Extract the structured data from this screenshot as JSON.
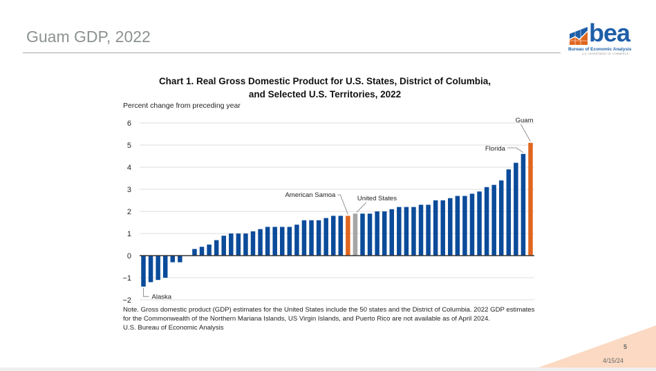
{
  "slide": {
    "title": "Guam GDP, 2022",
    "page_number": "5",
    "date": "4/15/24"
  },
  "logo": {
    "icon": "bea-logo-icon",
    "wordmark": "bea",
    "subtitle": "Bureau of Economic Analysis",
    "department": "U.S. DEPARTMENT OF COMMERCE"
  },
  "colors": {
    "states": "#0b4b9a",
    "highlight": "#e0661f",
    "united_states": "#a6a6a6",
    "gridline": "#e3e3e3",
    "axis": "#333333"
  },
  "chart_data": {
    "type": "bar",
    "title_line1": "Chart 1. Real Gross Domestic Product for U.S. States, District of Columbia,",
    "title_line2": "and Selected U.S. Territories, 2022",
    "xlabel": "",
    "ylabel": "Percent change from preceding year",
    "ylim": [
      -2,
      6
    ],
    "yticks": [
      6,
      5,
      4,
      3,
      2,
      1,
      0,
      -1,
      -2
    ],
    "ytick_labels": [
      "6",
      "5",
      "4",
      "3",
      "2",
      "1",
      "0",
      "−1",
      "−2"
    ],
    "grid": true,
    "values": [
      -1.4,
      -1.2,
      -1.1,
      -1.0,
      -0.3,
      -0.3,
      0.0,
      0.3,
      0.4,
      0.5,
      0.7,
      0.9,
      1.0,
      1.0,
      1.0,
      1.1,
      1.2,
      1.3,
      1.3,
      1.3,
      1.3,
      1.4,
      1.6,
      1.6,
      1.6,
      1.7,
      1.8,
      1.8,
      1.8,
      1.9,
      1.9,
      1.9,
      2.0,
      2.0,
      2.1,
      2.2,
      2.2,
      2.2,
      2.3,
      2.3,
      2.5,
      2.5,
      2.6,
      2.7,
      2.7,
      2.8,
      2.9,
      3.1,
      3.2,
      3.4,
      3.9,
      4.2,
      4.6,
      5.1
    ],
    "bar_kinds": [
      "state",
      "state",
      "state",
      "state",
      "state",
      "state",
      "state",
      "state",
      "state",
      "state",
      "state",
      "state",
      "state",
      "state",
      "state",
      "state",
      "state",
      "state",
      "state",
      "state",
      "state",
      "state",
      "state",
      "state",
      "state",
      "state",
      "state",
      "state",
      "territory",
      "us",
      "state",
      "state",
      "state",
      "state",
      "state",
      "state",
      "state",
      "state",
      "state",
      "state",
      "state",
      "state",
      "state",
      "state",
      "state",
      "state",
      "state",
      "state",
      "state",
      "state",
      "state",
      "state",
      "state",
      "territory"
    ],
    "annotations": [
      {
        "label": "Alaska",
        "index": 0
      },
      {
        "label": "American Samoa",
        "index": 28
      },
      {
        "label": "United States",
        "index": 29
      },
      {
        "label": "Florida",
        "index": 52
      },
      {
        "label": "Guam",
        "index": 53
      }
    ]
  },
  "note": {
    "text": "Note. Gross domestic product (GDP) estimates for the United States include the 50 states and the District of Columbia. 2022 GDP estimates for the Commonwealth of the Northern Mariana Islands, US Virgin Islands, and Puerto Rico are not available as of April 2024.",
    "source": "U.S. Bureau of Economic Analysis"
  }
}
